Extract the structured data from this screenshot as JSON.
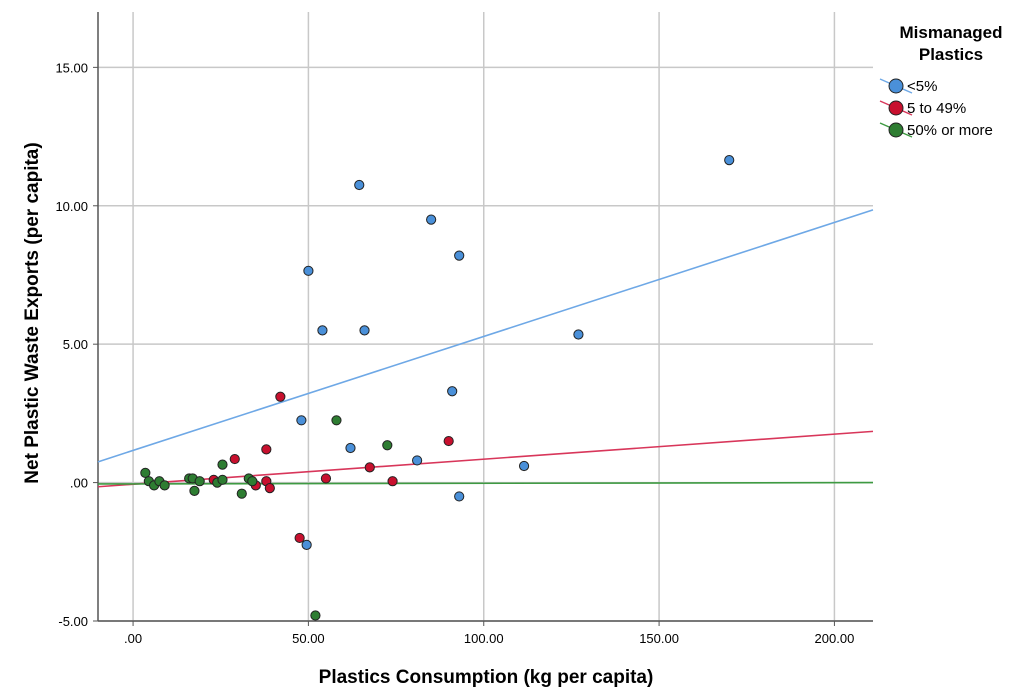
{
  "chart_data": {
    "type": "scatter",
    "title": "",
    "xlabel": "Plastics Consumption (kg per capita)",
    "ylabel": "Net Plastic Waste Exports (per capita)",
    "xlim": [
      -10,
      211
    ],
    "ylim": [
      -5,
      17
    ],
    "x_ticks": [
      0,
      50,
      100,
      150,
      200
    ],
    "x_tick_labels": [
      ".00",
      "50.00",
      "100.00",
      "150.00",
      "200.00"
    ],
    "y_ticks": [
      -5,
      0,
      5,
      10,
      15
    ],
    "y_tick_labels": [
      "-5.00",
      ".00",
      "5.00",
      "10.00",
      "15.00"
    ],
    "grid": true,
    "legend": {
      "title_lines": [
        "Mismanaged",
        "Plastics"
      ],
      "position": "right"
    },
    "series": [
      {
        "name": "<5%",
        "color": "#4a90d9",
        "line_color": "#6ea8e6",
        "fit_line": {
          "x": [
            -10,
            211
          ],
          "y": [
            0.75,
            9.85
          ]
        },
        "points": [
          {
            "x": 170.0,
            "y": 11.65
          },
          {
            "x": 64.5,
            "y": 10.75
          },
          {
            "x": 85.0,
            "y": 9.5
          },
          {
            "x": 93.0,
            "y": 8.2
          },
          {
            "x": 50.0,
            "y": 7.65
          },
          {
            "x": 54.0,
            "y": 5.5
          },
          {
            "x": 66.0,
            "y": 5.5
          },
          {
            "x": 127.0,
            "y": 5.35
          },
          {
            "x": 91.0,
            "y": 3.3
          },
          {
            "x": 48.0,
            "y": 2.25
          },
          {
            "x": 62.0,
            "y": 1.25
          },
          {
            "x": 81.0,
            "y": 0.8
          },
          {
            "x": 111.5,
            "y": 0.6
          },
          {
            "x": 93.0,
            "y": -0.5
          },
          {
            "x": 49.5,
            "y": -2.25
          }
        ]
      },
      {
        "name": "5 to 49%",
        "color": "#c8102e",
        "line_color": "#d8365a",
        "fit_line": {
          "x": [
            -10,
            211
          ],
          "y": [
            -0.15,
            1.85
          ]
        },
        "points": [
          {
            "x": 42.0,
            "y": 3.1
          },
          {
            "x": 90.0,
            "y": 1.5
          },
          {
            "x": 38.0,
            "y": 1.2
          },
          {
            "x": 29.0,
            "y": 0.85
          },
          {
            "x": 67.5,
            "y": 0.55
          },
          {
            "x": 23.0,
            "y": 0.1
          },
          {
            "x": 38.0,
            "y": 0.05
          },
          {
            "x": 55.0,
            "y": 0.15
          },
          {
            "x": 74.0,
            "y": 0.05
          },
          {
            "x": 35.0,
            "y": -0.1
          },
          {
            "x": 39.0,
            "y": -0.2
          },
          {
            "x": 47.5,
            "y": -2.0
          }
        ]
      },
      {
        "name": "50% or more",
        "color": "#2e7d32",
        "line_color": "#3e9a42",
        "fit_line": {
          "x": [
            -10,
            211
          ],
          "y": [
            -0.05,
            0.0
          ]
        },
        "points": [
          {
            "x": 58.0,
            "y": 2.25
          },
          {
            "x": 72.5,
            "y": 1.35
          },
          {
            "x": 25.5,
            "y": 0.65
          },
          {
            "x": 3.5,
            "y": 0.35
          },
          {
            "x": 4.5,
            "y": 0.05
          },
          {
            "x": 6.0,
            "y": -0.1
          },
          {
            "x": 7.5,
            "y": 0.05
          },
          {
            "x": 9.0,
            "y": -0.1
          },
          {
            "x": 16.0,
            "y": 0.15
          },
          {
            "x": 17.0,
            "y": 0.15
          },
          {
            "x": 19.0,
            "y": 0.05
          },
          {
            "x": 24.0,
            "y": 0.0
          },
          {
            "x": 25.5,
            "y": 0.1
          },
          {
            "x": 33.0,
            "y": 0.15
          },
          {
            "x": 34.0,
            "y": 0.05
          },
          {
            "x": 17.5,
            "y": -0.3
          },
          {
            "x": 31.0,
            "y": -0.4
          },
          {
            "x": 52.0,
            "y": -4.8
          }
        ]
      }
    ]
  }
}
